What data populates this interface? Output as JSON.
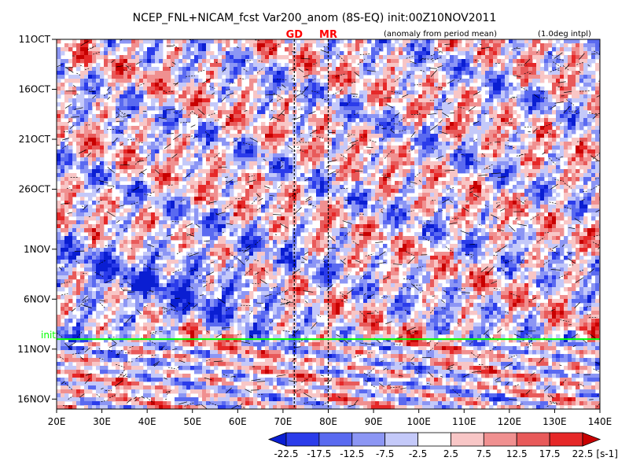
{
  "chart_data": {
    "type": "heatmap",
    "title": "NCEP_FNL+NICAM_fcst Var200_anom (8S-EQ) init:00Z10NOV2011",
    "subtitle_left": "(anomaly from period mean)",
    "subtitle_right": "(1.0deg intpl)",
    "x_ticks": [
      "20E",
      "30E",
      "40E",
      "50E",
      "60E",
      "70E",
      "80E",
      "90E",
      "100E",
      "110E",
      "120E",
      "130E",
      "140E"
    ],
    "x_values": [
      20,
      30,
      40,
      50,
      60,
      70,
      80,
      90,
      100,
      110,
      120,
      130,
      140
    ],
    "xlim": [
      20,
      140
    ],
    "y_ticks": [
      "11OCT",
      "16OCT",
      "21OCT",
      "26OCT",
      "1NOV",
      "6NOV",
      "11NOV",
      "16NOV"
    ],
    "y_values": [
      "2011-10-11",
      "2011-10-16",
      "2011-10-21",
      "2011-10-26",
      "2011-11-01",
      "2011-11-06",
      "2011-11-11",
      "2011-11-16"
    ],
    "ylim": [
      "2011-10-11",
      "2011-11-17"
    ],
    "markers": [
      {
        "label": "GD",
        "lon": 72.5
      },
      {
        "label": "MR",
        "lon": 80
      }
    ],
    "init_line": {
      "label": "init",
      "date": "2011-11-10"
    },
    "colorbar": {
      "levels": [
        -22.5,
        -17.5,
        -12.5,
        -7.5,
        -2.5,
        2.5,
        7.5,
        12.5,
        17.5,
        22.5
      ],
      "labels": [
        "-22.5",
        "-17.5",
        "-12.5",
        "-7.5",
        "-2.5",
        "2.5",
        "7.5",
        "12.5",
        "17.5",
        "22.5"
      ],
      "colors": [
        "#0a1ed2",
        "#2b3cea",
        "#5a6af0",
        "#8c96f4",
        "#c4c9f9",
        "#ffffff",
        "#f8c6c6",
        "#f09090",
        "#e85a5a",
        "#e62828",
        "#c80000"
      ],
      "unit": "[s-1]"
    }
  }
}
